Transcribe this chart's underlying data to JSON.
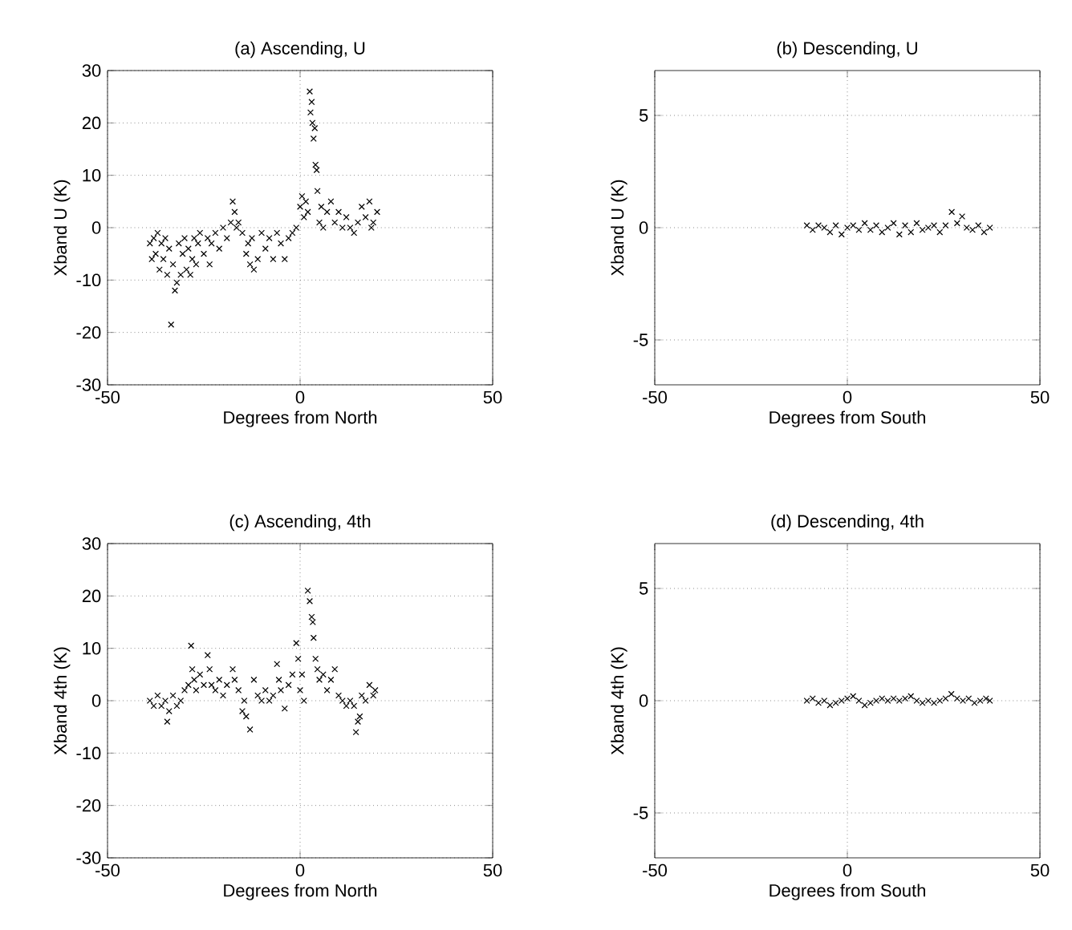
{
  "chart_data": [
    {
      "type": "scatter",
      "title": "(a) Ascending, U",
      "xlabel": "Degrees from North",
      "ylabel": "Xband U (K)",
      "xlim": [
        -50,
        50
      ],
      "ylim": [
        -30,
        30
      ],
      "xticks": [
        -50,
        0,
        50
      ],
      "yticks": [
        -30,
        -20,
        -10,
        0,
        10,
        20,
        30
      ],
      "grid": true,
      "marker": "cross",
      "series": [
        {
          "color": "#000000",
          "x": [
            -39,
            -38.5,
            -38,
            -37.5,
            -37,
            -36.5,
            -36,
            -35.5,
            -35,
            -34.5,
            -34,
            -33.5,
            -33,
            -32.5,
            -32,
            -31.5,
            -31,
            -30.5,
            -30,
            -29.5,
            -29,
            -28.5,
            -28,
            -27.5,
            -27,
            -26.5,
            -26,
            -25,
            -24,
            -23.5,
            -23,
            -22,
            -21,
            -20,
            -19,
            -18,
            -17.5,
            -17,
            -16.5,
            -16,
            -15,
            -14,
            -13.5,
            -13,
            -12.5,
            -12,
            -11,
            -10,
            -9,
            -8,
            -7,
            -6,
            -5,
            -4,
            -3,
            -2,
            -1,
            0,
            0.5,
            1,
            1.5,
            2,
            2.5,
            2.7,
            3,
            3.2,
            3.5,
            3.8,
            4,
            4.3,
            4.5,
            5,
            5.5,
            6,
            7,
            8,
            9,
            10,
            11,
            12,
            13,
            14,
            15,
            16,
            17,
            18,
            18.5,
            19,
            20
          ],
          "values": [
            -3,
            -6,
            -2,
            -5,
            -1,
            -8,
            -3,
            -6,
            -2,
            -9,
            -4,
            -18.5,
            -7,
            -12,
            -10.5,
            -3,
            -9,
            -5,
            -2,
            -8,
            -4,
            -9,
            -6,
            -2,
            -7,
            -3,
            -1,
            -5,
            -2,
            -7,
            -3,
            -1,
            -4,
            0,
            -2,
            1,
            5,
            3,
            0,
            1,
            -1,
            -5,
            -3,
            -7,
            -2,
            -8,
            -6,
            -1,
            -4,
            -2,
            -6,
            -1,
            -3,
            -6,
            -2,
            -1,
            0,
            4,
            6,
            2,
            5,
            3,
            26,
            22,
            24,
            20,
            17,
            19,
            12,
            11,
            7,
            1,
            4,
            0,
            3,
            5,
            1,
            3,
            0,
            2,
            0,
            -1,
            1,
            4,
            2,
            5,
            0,
            1,
            3
          ]
        }
      ]
    },
    {
      "type": "scatter",
      "title": "(b) Descending, U",
      "xlabel": "Degrees from South",
      "ylabel": "Xband U (K)",
      "xlim": [
        -50,
        50
      ],
      "ylim": [
        -7,
        7
      ],
      "xticks": [
        -50,
        0,
        50
      ],
      "yticks": [
        -5,
        0,
        5
      ],
      "grid": true,
      "marker": "cross",
      "series": [
        {
          "color": "#000000",
          "x": [
            -10.5,
            -9,
            -7.5,
            -6,
            -4.5,
            -3,
            -1.5,
            0,
            1.5,
            3,
            4.5,
            6,
            7.5,
            9,
            10.5,
            12,
            13.5,
            15,
            16.5,
            18,
            19.5,
            21,
            22.5,
            24,
            25.5,
            27.1,
            28.5,
            29.8,
            31,
            32.5,
            34,
            35.5,
            37
          ],
          "values": [
            0.1,
            -0.1,
            0.1,
            0,
            -0.2,
            0.1,
            -0.3,
            0,
            0.1,
            -0.1,
            0.2,
            -0.1,
            0.1,
            -0.2,
            0,
            0.2,
            -0.3,
            0.1,
            -0.2,
            0.2,
            -0.1,
            0,
            0.1,
            -0.2,
            0.1,
            0.7,
            0.2,
            0.5,
            0,
            -0.1,
            0.1,
            -0.2,
            0
          ]
        }
      ]
    },
    {
      "type": "scatter",
      "title": "(c) Ascending, 4th",
      "xlabel": "Degrees from North",
      "ylabel": "Xband 4th (K)",
      "xlim": [
        -50,
        50
      ],
      "ylim": [
        -30,
        30
      ],
      "xticks": [
        -50,
        0,
        50
      ],
      "yticks": [
        -30,
        -20,
        -10,
        0,
        10,
        20,
        30
      ],
      "grid": true,
      "marker": "cross",
      "series": [
        {
          "color": "#000000",
          "x": [
            -39,
            -38,
            -37,
            -36,
            -35,
            -34.5,
            -34,
            -33,
            -32,
            -31,
            -30,
            -29,
            -28.3,
            -28,
            -27.5,
            -27,
            -26,
            -25,
            -24,
            -23.5,
            -23,
            -22,
            -21,
            -20,
            -19,
            -17.5,
            -17,
            -16,
            -15,
            -14.5,
            -14,
            -13,
            -12,
            -11,
            -10,
            -9,
            -8,
            -7,
            -6,
            -5.5,
            -5,
            -4,
            -3,
            -2,
            -1,
            -0.5,
            0,
            0.5,
            1,
            2,
            2.5,
            3,
            3.3,
            3.5,
            4,
            4.5,
            5,
            6,
            7,
            8,
            9,
            10,
            11,
            12,
            13,
            14,
            14.5,
            15,
            15.5,
            16,
            17,
            18,
            19,
            19.5
          ],
          "values": [
            0,
            -1,
            1,
            -1,
            0,
            -4,
            -2,
            1,
            -1,
            0,
            2,
            3,
            10.5,
            6,
            4,
            2,
            5,
            3,
            8.7,
            6,
            3,
            2,
            4,
            1,
            3,
            6,
            4,
            2,
            -2,
            0,
            -3,
            -5.5,
            4,
            1,
            0,
            2,
            0,
            1,
            7,
            4,
            2,
            -1.5,
            3,
            5,
            11,
            8,
            2,
            5,
            0,
            21,
            19,
            16,
            15,
            12,
            8,
            6,
            4,
            5,
            2,
            4,
            6,
            1,
            0,
            -1,
            0,
            -1,
            -6,
            -4,
            -3,
            1,
            0,
            3,
            1,
            2
          ]
        }
      ]
    },
    {
      "type": "scatter",
      "title": "(d) Descending, 4th",
      "xlabel": "Degrees from South",
      "ylabel": "Xband 4th (K)",
      "xlim": [
        -50,
        50
      ],
      "ylim": [
        -7,
        7
      ],
      "xticks": [
        -50,
        0,
        50
      ],
      "yticks": [
        -5,
        0,
        5
      ],
      "grid": true,
      "marker": "cross",
      "series": [
        {
          "color": "#000000",
          "x": [
            -10.5,
            -9,
            -7.5,
            -6,
            -4.5,
            -3,
            -1.5,
            0,
            1.5,
            3,
            4.5,
            6,
            7.5,
            9,
            10.5,
            12,
            13.5,
            15,
            16.5,
            18,
            19.5,
            21,
            22.5,
            24,
            25.5,
            27,
            28.5,
            30,
            31.5,
            33,
            34.5,
            36,
            37
          ],
          "values": [
            0,
            0.1,
            -0.1,
            0,
            -0.2,
            -0.1,
            0,
            0.1,
            0.2,
            0,
            -0.2,
            -0.1,
            0,
            0.1,
            0,
            0.1,
            0,
            0.1,
            0.2,
            0,
            -0.1,
            0,
            -0.1,
            0,
            0.1,
            0.3,
            0.1,
            0,
            0.1,
            -0.1,
            0,
            0.1,
            0
          ]
        }
      ]
    }
  ]
}
